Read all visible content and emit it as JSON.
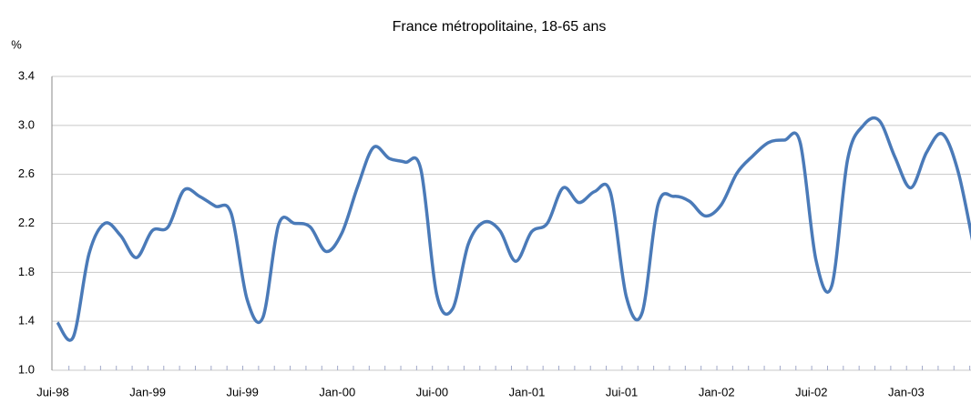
{
  "chart_data": {
    "type": "line",
    "title": "France métropolitaine, 18-65 ans",
    "y_label": "%",
    "categories": [
      "Jui-98",
      null,
      null,
      null,
      null,
      null,
      "Jan-99",
      null,
      null,
      null,
      null,
      null,
      "Jui-99",
      null,
      null,
      null,
      null,
      null,
      "Jan-00",
      null,
      null,
      null,
      null,
      null,
      "Jui-00",
      null,
      null,
      null,
      null,
      null,
      "Jan-01",
      null,
      null,
      null,
      null,
      null,
      "Jui-01",
      null,
      null,
      null,
      null,
      null,
      "Jan-02",
      null,
      null,
      null,
      null,
      null,
      "Jui-02",
      null,
      null,
      null,
      null,
      null,
      "Jan-03",
      null,
      null,
      null,
      null
    ],
    "values": [
      1.39,
      1.27,
      1.95,
      2.2,
      2.1,
      1.92,
      2.14,
      2.17,
      2.47,
      2.42,
      2.34,
      2.28,
      1.58,
      1.43,
      2.19,
      2.2,
      2.17,
      1.97,
      2.12,
      2.5,
      2.82,
      2.73,
      2.7,
      2.64,
      1.62,
      1.5,
      2.03,
      2.21,
      2.14,
      1.89,
      2.13,
      2.2,
      2.49,
      2.37,
      2.46,
      2.45,
      1.6,
      1.47,
      2.35,
      2.42,
      2.38,
      2.26,
      2.35,
      2.61,
      2.75,
      2.86,
      2.88,
      2.86,
      1.9,
      1.69,
      2.72,
      3.0,
      3.04,
      2.74,
      2.49,
      2.78,
      2.93,
      2.62,
      2.0
    ],
    "color": "#4a7ab8",
    "ylim": [
      1.0,
      3.4
    ],
    "yticks": [
      {
        "value": 1.0,
        "label": "1.0"
      },
      1.4,
      1.8,
      2.2,
      2.6,
      {
        "value": 3.0,
        "label": "3.0"
      },
      3.4
    ],
    "grid": true
  }
}
